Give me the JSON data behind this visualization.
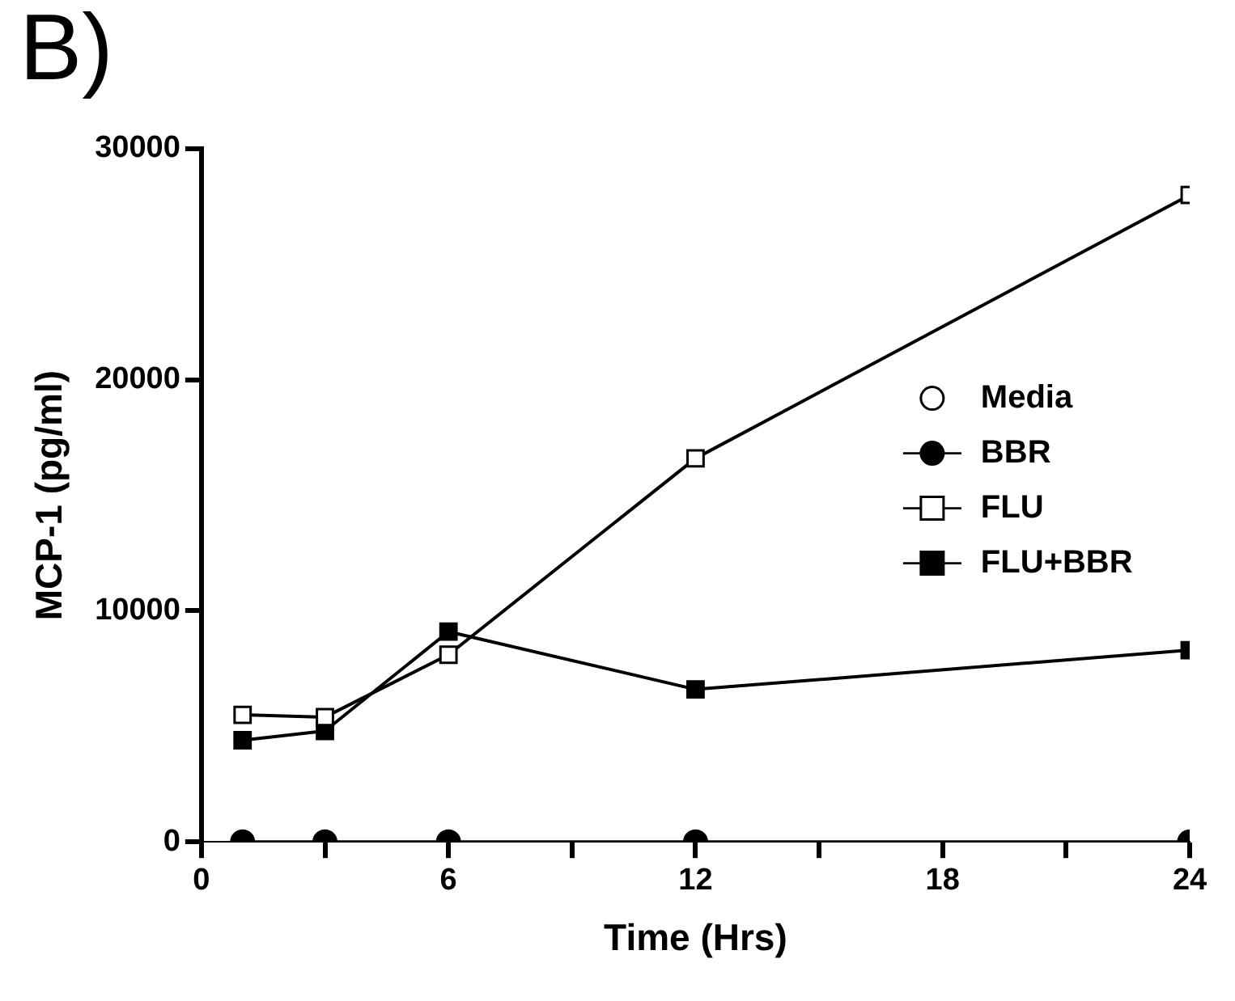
{
  "chart_data": {
    "type": "line",
    "title": "B)",
    "xlabel": "Time (Hrs)",
    "ylabel": "MCP-1 (pg/ml)",
    "x": [
      1,
      3,
      6,
      12,
      24
    ],
    "series": [
      {
        "name": "Media",
        "color": "#ffffff",
        "marker": "circle",
        "line_style": "none",
        "values": [
          null,
          null,
          null,
          null,
          null
        ]
      },
      {
        "name": "BBR",
        "color": "#000000",
        "marker": "circle",
        "line_style": "solid",
        "values": [
          0,
          0,
          0,
          0,
          0
        ]
      },
      {
        "name": "FLU",
        "color": "#ffffff",
        "marker": "square",
        "line_style": "solid",
        "values": [
          5500,
          5400,
          8100,
          16600,
          28000
        ]
      },
      {
        "name": "FLU+BBR",
        "color": "#000000",
        "marker": "square",
        "line_style": "solid",
        "values": [
          4400,
          4800,
          9100,
          6600,
          8300
        ]
      }
    ],
    "xlim": [
      0,
      24
    ],
    "xticks": [
      0,
      {
        "value": 3,
        "label": null
      },
      6,
      {
        "value": 9,
        "label": null
      },
      12,
      {
        "value": 15,
        "label": null
      },
      18,
      {
        "value": 21,
        "label": null
      },
      24
    ],
    "ylim": [
      0,
      30000
    ],
    "yticks": [
      0,
      10000,
      20000,
      30000
    ],
    "grid": false,
    "legend": "right"
  }
}
